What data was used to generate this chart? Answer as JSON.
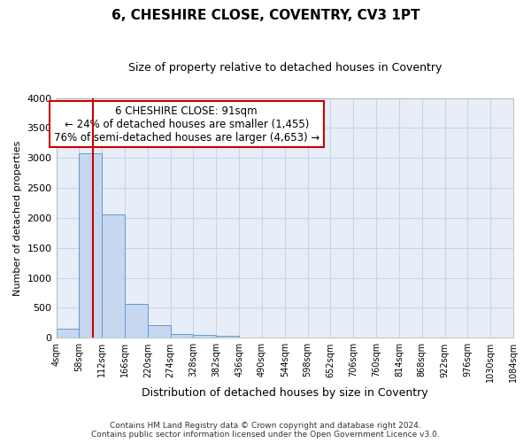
{
  "title": "6, CHESHIRE CLOSE, COVENTRY, CV3 1PT",
  "subtitle": "Size of property relative to detached houses in Coventry",
  "xlabel": "Distribution of detached houses by size in Coventry",
  "ylabel": "Number of detached properties",
  "bin_edges": [
    4,
    58,
    112,
    166,
    220,
    274,
    328,
    382,
    436,
    490,
    544,
    598,
    652,
    706,
    760,
    814,
    868,
    922,
    976,
    1030,
    1084
  ],
  "bar_heights": [
    150,
    3080,
    2060,
    560,
    210,
    70,
    50,
    30,
    0,
    0,
    0,
    0,
    0,
    0,
    0,
    0,
    0,
    0,
    0,
    0
  ],
  "bar_color": "#c5d8f0",
  "bar_edgecolor": "#6699cc",
  "grid_color": "#c8d4e8",
  "background_color": "#e8eef8",
  "red_line_x": 91,
  "annotation_line1": "6 CHESHIRE CLOSE: 91sqm",
  "annotation_line2": "← 24% of detached houses are smaller (1,455)",
  "annotation_line3": "76% of semi-detached houses are larger (4,653) →",
  "annotation_box_color": "#ffffff",
  "annotation_border_color": "#cc0000",
  "ylim": [
    0,
    4000
  ],
  "footer_line1": "Contains HM Land Registry data © Crown copyright and database right 2024.",
  "footer_line2": "Contains public sector information licensed under the Open Government Licence v3.0.",
  "tick_labels": [
    "4sqm",
    "58sqm",
    "112sqm",
    "166sqm",
    "220sqm",
    "274sqm",
    "328sqm",
    "382sqm",
    "436sqm",
    "490sqm",
    "544sqm",
    "598sqm",
    "652sqm",
    "706sqm",
    "760sqm",
    "814sqm",
    "868sqm",
    "922sqm",
    "976sqm",
    "1030sqm",
    "1084sqm"
  ],
  "title_fontsize": 11,
  "subtitle_fontsize": 9,
  "ylabel_fontsize": 8,
  "xlabel_fontsize": 9,
  "annotation_fontsize": 8.5,
  "ytick_fontsize": 8,
  "xtick_fontsize": 7
}
